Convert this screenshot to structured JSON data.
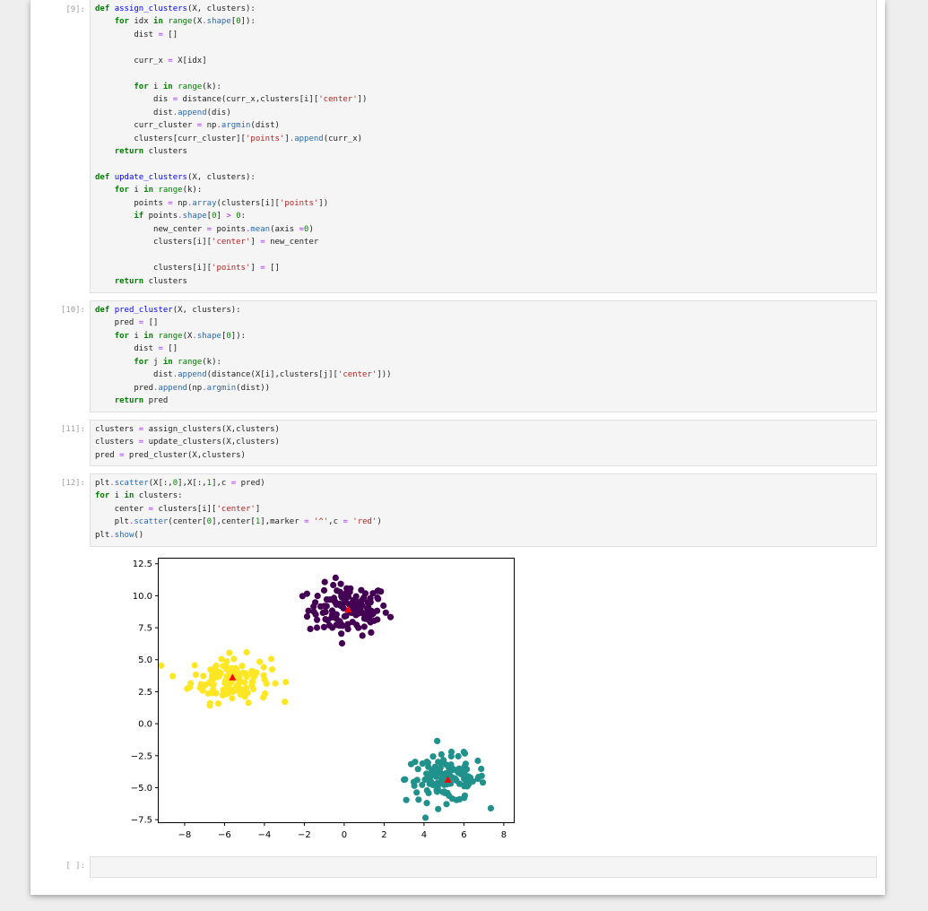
{
  "cells": [
    {
      "prompt": "[9]:",
      "lines": [
        [
          {
            "t": "def",
            "c": "kw"
          },
          {
            "t": " "
          },
          {
            "t": "assign_clusters",
            "c": "fn"
          },
          {
            "t": "(X, clusters):"
          }
        ],
        [
          {
            "t": "    "
          },
          {
            "t": "for",
            "c": "kw"
          },
          {
            "t": " idx "
          },
          {
            "t": "in",
            "c": "kw"
          },
          {
            "t": " "
          },
          {
            "t": "range",
            "c": "bi"
          },
          {
            "t": "(X"
          },
          {
            "t": ".",
            "c": "op"
          },
          {
            "t": "shape",
            "c": "at"
          },
          {
            "t": "["
          },
          {
            "t": "0",
            "c": "num"
          },
          {
            "t": "]):"
          }
        ],
        [
          {
            "t": "        dist "
          },
          {
            "t": "=",
            "c": "op"
          },
          {
            "t": " []"
          }
        ],
        [
          {
            "t": ""
          }
        ],
        [
          {
            "t": "        curr_x "
          },
          {
            "t": "=",
            "c": "op"
          },
          {
            "t": " X[idx]"
          }
        ],
        [
          {
            "t": ""
          }
        ],
        [
          {
            "t": "        "
          },
          {
            "t": "for",
            "c": "kw"
          },
          {
            "t": " i "
          },
          {
            "t": "in",
            "c": "kw"
          },
          {
            "t": " "
          },
          {
            "t": "range",
            "c": "bi"
          },
          {
            "t": "(k):"
          }
        ],
        [
          {
            "t": "            dis "
          },
          {
            "t": "=",
            "c": "op"
          },
          {
            "t": " distance(curr_x,clusters[i]["
          },
          {
            "t": "'center'",
            "c": "str"
          },
          {
            "t": "])"
          }
        ],
        [
          {
            "t": "            dist"
          },
          {
            "t": ".",
            "c": "op"
          },
          {
            "t": "append",
            "c": "at"
          },
          {
            "t": "(dis)"
          }
        ],
        [
          {
            "t": "        curr_cluster "
          },
          {
            "t": "=",
            "c": "op"
          },
          {
            "t": " np"
          },
          {
            "t": ".",
            "c": "op"
          },
          {
            "t": "argmin",
            "c": "at"
          },
          {
            "t": "(dist)"
          }
        ],
        [
          {
            "t": "        clusters[curr_cluster]["
          },
          {
            "t": "'points'",
            "c": "str"
          },
          {
            "t": "]"
          },
          {
            "t": ".",
            "c": "op"
          },
          {
            "t": "append",
            "c": "at"
          },
          {
            "t": "(curr_x)"
          }
        ],
        [
          {
            "t": "    "
          },
          {
            "t": "return",
            "c": "kw"
          },
          {
            "t": " clusters"
          }
        ],
        [
          {
            "t": ""
          }
        ],
        [
          {
            "t": "def",
            "c": "kw"
          },
          {
            "t": " "
          },
          {
            "t": "update_clusters",
            "c": "fn"
          },
          {
            "t": "(X, clusters):"
          }
        ],
        [
          {
            "t": "    "
          },
          {
            "t": "for",
            "c": "kw"
          },
          {
            "t": " i "
          },
          {
            "t": "in",
            "c": "kw"
          },
          {
            "t": " "
          },
          {
            "t": "range",
            "c": "bi"
          },
          {
            "t": "(k):"
          }
        ],
        [
          {
            "t": "        points "
          },
          {
            "t": "=",
            "c": "op"
          },
          {
            "t": " np"
          },
          {
            "t": ".",
            "c": "op"
          },
          {
            "t": "array",
            "c": "at"
          },
          {
            "t": "(clusters[i]["
          },
          {
            "t": "'points'",
            "c": "str"
          },
          {
            "t": "])"
          }
        ],
        [
          {
            "t": "        "
          },
          {
            "t": "if",
            "c": "kw"
          },
          {
            "t": " points"
          },
          {
            "t": ".",
            "c": "op"
          },
          {
            "t": "shape",
            "c": "at"
          },
          {
            "t": "["
          },
          {
            "t": "0",
            "c": "num"
          },
          {
            "t": "] "
          },
          {
            "t": ">",
            "c": "op"
          },
          {
            "t": " "
          },
          {
            "t": "0",
            "c": "num"
          },
          {
            "t": ":"
          }
        ],
        [
          {
            "t": "            new_center "
          },
          {
            "t": "=",
            "c": "op"
          },
          {
            "t": " points"
          },
          {
            "t": ".",
            "c": "op"
          },
          {
            "t": "mean",
            "c": "at"
          },
          {
            "t": "(axis "
          },
          {
            "t": "=",
            "c": "op"
          },
          {
            "t": "0",
            "c": "num"
          },
          {
            "t": ")"
          }
        ],
        [
          {
            "t": "            clusters[i]["
          },
          {
            "t": "'center'",
            "c": "str"
          },
          {
            "t": "] "
          },
          {
            "t": "=",
            "c": "op"
          },
          {
            "t": " new_center"
          }
        ],
        [
          {
            "t": ""
          }
        ],
        [
          {
            "t": "            clusters[i]["
          },
          {
            "t": "'points'",
            "c": "str"
          },
          {
            "t": "] "
          },
          {
            "t": "=",
            "c": "op"
          },
          {
            "t": " []"
          }
        ],
        [
          {
            "t": "    "
          },
          {
            "t": "return",
            "c": "kw"
          },
          {
            "t": " clusters"
          }
        ]
      ]
    },
    {
      "prompt": "[10]:",
      "lines": [
        [
          {
            "t": "def",
            "c": "kw"
          },
          {
            "t": " "
          },
          {
            "t": "pred_cluster",
            "c": "fn"
          },
          {
            "t": "(X, clusters):"
          }
        ],
        [
          {
            "t": "    pred "
          },
          {
            "t": "=",
            "c": "op"
          },
          {
            "t": " []"
          }
        ],
        [
          {
            "t": "    "
          },
          {
            "t": "for",
            "c": "kw"
          },
          {
            "t": " i "
          },
          {
            "t": "in",
            "c": "kw"
          },
          {
            "t": " "
          },
          {
            "t": "range",
            "c": "bi"
          },
          {
            "t": "(X"
          },
          {
            "t": ".",
            "c": "op"
          },
          {
            "t": "shape",
            "c": "at"
          },
          {
            "t": "["
          },
          {
            "t": "0",
            "c": "num"
          },
          {
            "t": "]):"
          }
        ],
        [
          {
            "t": "        dist "
          },
          {
            "t": "=",
            "c": "op"
          },
          {
            "t": " []"
          }
        ],
        [
          {
            "t": "        "
          },
          {
            "t": "for",
            "c": "kw"
          },
          {
            "t": " j "
          },
          {
            "t": "in",
            "c": "kw"
          },
          {
            "t": " "
          },
          {
            "t": "range",
            "c": "bi"
          },
          {
            "t": "(k):"
          }
        ],
        [
          {
            "t": "            dist"
          },
          {
            "t": ".",
            "c": "op"
          },
          {
            "t": "append",
            "c": "at"
          },
          {
            "t": "(distance(X[i],clusters[j]["
          },
          {
            "t": "'center'",
            "c": "str"
          },
          {
            "t": "]))"
          }
        ],
        [
          {
            "t": "        pred"
          },
          {
            "t": ".",
            "c": "op"
          },
          {
            "t": "append",
            "c": "at"
          },
          {
            "t": "(np"
          },
          {
            "t": ".",
            "c": "op"
          },
          {
            "t": "argmin",
            "c": "at"
          },
          {
            "t": "(dist))"
          }
        ],
        [
          {
            "t": "    "
          },
          {
            "t": "return",
            "c": "kw"
          },
          {
            "t": " pred"
          }
        ]
      ]
    },
    {
      "prompt": "[11]:",
      "lines": [
        [
          {
            "t": "clusters "
          },
          {
            "t": "=",
            "c": "op"
          },
          {
            "t": " assign_clusters(X,clusters)"
          }
        ],
        [
          {
            "t": "clusters "
          },
          {
            "t": "=",
            "c": "op"
          },
          {
            "t": " update_clusters(X,clusters)"
          }
        ],
        [
          {
            "t": "pred "
          },
          {
            "t": "=",
            "c": "op"
          },
          {
            "t": " pred_cluster(X,clusters)"
          }
        ]
      ]
    },
    {
      "prompt": "[12]:",
      "lines": [
        [
          {
            "t": "plt"
          },
          {
            "t": ".",
            "c": "op"
          },
          {
            "t": "scatter",
            "c": "at"
          },
          {
            "t": "(X[:,"
          },
          {
            "t": "0",
            "c": "num"
          },
          {
            "t": "],X[:,"
          },
          {
            "t": "1",
            "c": "num"
          },
          {
            "t": "],c "
          },
          {
            "t": "=",
            "c": "op"
          },
          {
            "t": " pred)"
          }
        ],
        [
          {
            "t": "for",
            "c": "kw"
          },
          {
            "t": " i "
          },
          {
            "t": "in",
            "c": "kw"
          },
          {
            "t": " clusters:"
          }
        ],
        [
          {
            "t": "    center "
          },
          {
            "t": "=",
            "c": "op"
          },
          {
            "t": " clusters[i]["
          },
          {
            "t": "'center'",
            "c": "str"
          },
          {
            "t": "]"
          }
        ],
        [
          {
            "t": "    plt"
          },
          {
            "t": ".",
            "c": "op"
          },
          {
            "t": "scatter",
            "c": "at"
          },
          {
            "t": "(center["
          },
          {
            "t": "0",
            "c": "num"
          },
          {
            "t": "],center["
          },
          {
            "t": "1",
            "c": "num"
          },
          {
            "t": "],marker "
          },
          {
            "t": "=",
            "c": "op"
          },
          {
            "t": " "
          },
          {
            "t": "'^'",
            "c": "str"
          },
          {
            "t": ",c "
          },
          {
            "t": "=",
            "c": "op"
          },
          {
            "t": " "
          },
          {
            "t": "'red'",
            "c": "str"
          },
          {
            "t": ")"
          }
        ],
        [
          {
            "t": "plt"
          },
          {
            "t": ".",
            "c": "op"
          },
          {
            "t": "show",
            "c": "at"
          },
          {
            "t": "()"
          }
        ]
      ]
    },
    {
      "prompt": "[ ]:",
      "lines": [
        [
          {
            "t": ""
          }
        ]
      ]
    }
  ],
  "chart_data": {
    "type": "scatter",
    "xlim": [
      -9.3,
      8.5
    ],
    "ylim": [
      -7.7,
      12.9
    ],
    "xticks": [
      "−8",
      "−6",
      "−4",
      "−2",
      "0",
      "2",
      "4",
      "6",
      "8"
    ],
    "xtick_values": [
      -8,
      -6,
      -4,
      -2,
      0,
      2,
      4,
      6,
      8
    ],
    "yticks": [
      "12.5",
      "10.0",
      "7.5",
      "5.0",
      "2.5",
      "0.0",
      "−2.5",
      "−5.0",
      "−7.5"
    ],
    "ytick_values": [
      12.5,
      10,
      7.5,
      5,
      2.5,
      0,
      -2.5,
      -5,
      -7.5
    ],
    "grid": false,
    "series": [
      {
        "color": "#440154",
        "center": [
          0.2,
          8.9
        ],
        "spread": [
          1.0,
          1.0
        ],
        "count": 130
      },
      {
        "color": "#fde725",
        "center": [
          -5.7,
          3.5
        ],
        "spread": [
          1.0,
          0.9
        ],
        "count": 130
      },
      {
        "color": "#21918c",
        "center": [
          5.1,
          -4.3
        ],
        "spread": [
          1.0,
          0.9
        ],
        "count": 130
      }
    ],
    "centers": [
      {
        "x": 0.2,
        "y": 8.9,
        "color": "red",
        "marker": "triangle"
      },
      {
        "x": -5.6,
        "y": 3.6,
        "color": "red",
        "marker": "triangle"
      },
      {
        "x": 5.2,
        "y": -4.4,
        "color": "red",
        "marker": "triangle"
      }
    ]
  }
}
